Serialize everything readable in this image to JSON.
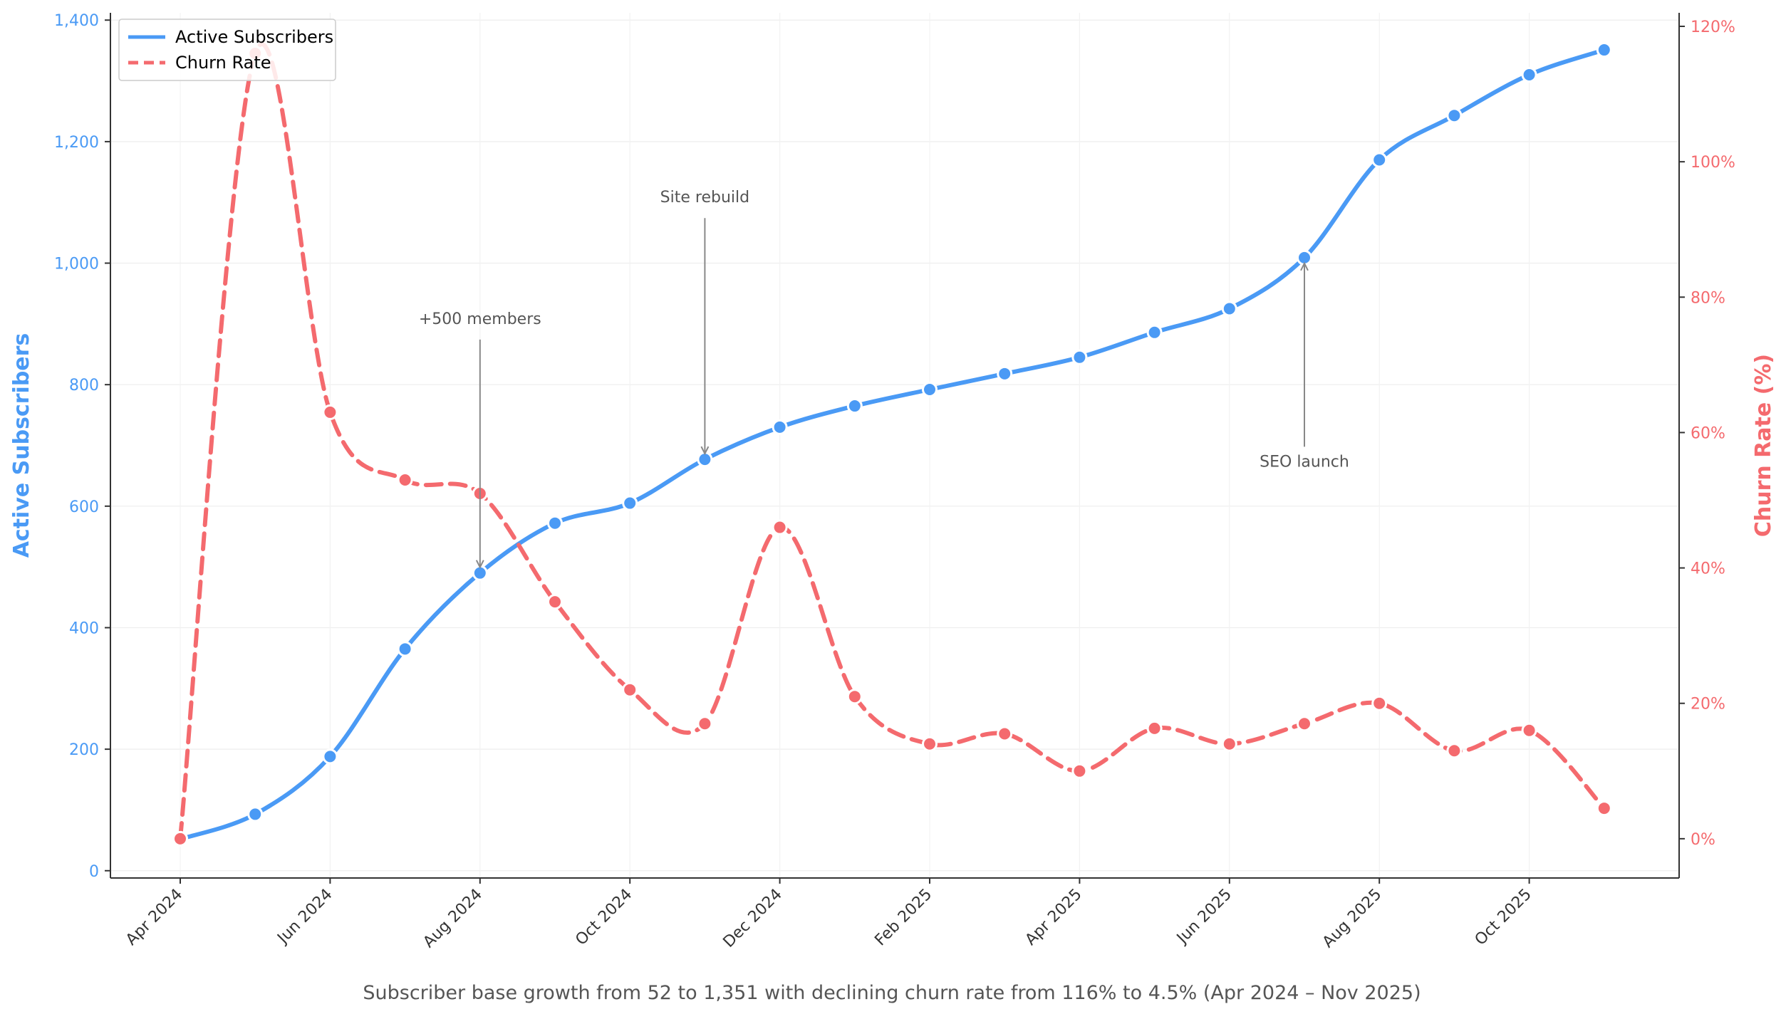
{
  "caption": "Subscriber base growth from 52 to 1,351 with declining churn rate from 116% to 4.5% (Apr 2024 – Nov 2025)",
  "chart_data": {
    "type": "line",
    "x": [
      "2024-04",
      "2024-05",
      "2024-06",
      "2024-07",
      "2024-08",
      "2024-09",
      "2024-10",
      "2024-11",
      "2024-12",
      "2025-01",
      "2025-02",
      "2025-03",
      "2025-04",
      "2025-05",
      "2025-06",
      "2025-07",
      "2025-08",
      "2025-09",
      "2025-10",
      "2025-11"
    ],
    "x_tick_labels": [
      "Apr 2024",
      "Jun 2024",
      "Aug 2024",
      "Oct 2024",
      "Dec 2024",
      "Feb 2025",
      "Apr 2025",
      "Jun 2025",
      "Aug 2025",
      "Oct 2025"
    ],
    "x_tick_months": [
      "2024-04",
      "2024-06",
      "2024-08",
      "2024-10",
      "2024-12",
      "2025-02",
      "2025-04",
      "2025-06",
      "2025-08",
      "2025-10"
    ],
    "series": [
      {
        "name": "Active Subscribers",
        "axis": "left",
        "color": "#4a9af5",
        "line_style": "solid",
        "values": [
          52,
          93,
          188,
          365,
          490,
          572,
          605,
          677,
          730,
          765,
          792,
          818,
          845,
          886,
          925,
          1009,
          1170,
          1243,
          1310,
          1351
        ]
      },
      {
        "name": "Churn Rate",
        "axis": "right",
        "color": "#f46a6e",
        "line_style": "dashed",
        "values": [
          0,
          116,
          63,
          53,
          51,
          35,
          22,
          17,
          46,
          21,
          14,
          15.5,
          10,
          16.3,
          14,
          17,
          20,
          13,
          16,
          4.5
        ]
      }
    ],
    "y_left": {
      "label": "Active Subscribers",
      "ticks": [
        0,
        200,
        400,
        600,
        800,
        1000,
        1200,
        1400
      ],
      "tick_labels": [
        "0",
        "200",
        "400",
        "600",
        "800",
        "1,000",
        "1,200",
        "1,400"
      ],
      "ylim": [
        -12,
        1412
      ]
    },
    "y_right": {
      "label": "Churn Rate (%)",
      "ticks": [
        0,
        20,
        40,
        60,
        80,
        100,
        120
      ],
      "tick_labels": [
        "0%",
        "20%",
        "40%",
        "60%",
        "80%",
        "100%",
        "120%"
      ],
      "ylim": [
        -5.8,
        122
      ]
    },
    "annotations": [
      {
        "text": "+500 members",
        "x": "2024-08",
        "y": 490,
        "axis": "left",
        "text_y": 900
      },
      {
        "text": "Site rebuild",
        "x": "2024-11",
        "y": 677,
        "axis": "left",
        "text_y": 1100
      },
      {
        "text": "SEO launch",
        "x": "2025-07",
        "y": 1009,
        "axis": "left",
        "text_y": 665
      }
    ],
    "legend": {
      "position": "top-left"
    },
    "grid": true
  }
}
